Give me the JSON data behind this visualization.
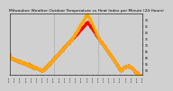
{
  "title": "Milwaukee Weather Outdoor Temperature vs Heat Index per Minute (24 Hours)",
  "title_fontsize": 3.2,
  "bg_color": "#d0d0d0",
  "plot_bg_color": "#d0d0d0",
  "line1_color": "#ff0000",
  "line2_color": "#ffaa00",
  "ylabel_right_values": [
    50,
    55,
    60,
    65,
    70,
    75,
    80,
    85,
    90
  ],
  "ylim": [
    47,
    95
  ],
  "xlim": [
    0,
    1439
  ],
  "vline_positions": [
    480,
    960
  ],
  "vline_color": "#888888",
  "xtick_positions": [
    0,
    60,
    120,
    180,
    240,
    300,
    360,
    420,
    480,
    540,
    600,
    660,
    720,
    780,
    840,
    900,
    960,
    1020,
    1080,
    1140,
    1200,
    1260,
    1320,
    1380,
    1439
  ],
  "xtick_labels": [
    "00:00",
    "01:00",
    "02:00",
    "03:00",
    "04:00",
    "05:00",
    "06:00",
    "07:00",
    "08:00",
    "09:00",
    "10:00",
    "11:00",
    "12:00",
    "13:00",
    "14:00",
    "15:00",
    "16:00",
    "17:00",
    "18:00",
    "19:00",
    "20:00",
    "21:00",
    "22:00",
    "23:00",
    "23:59"
  ],
  "marker_size": 0.8
}
